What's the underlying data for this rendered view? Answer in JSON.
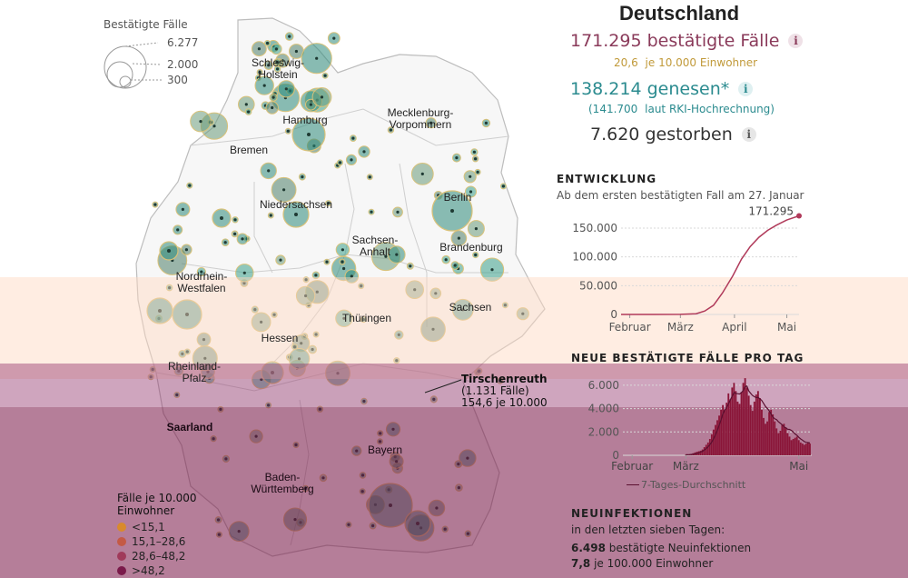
{
  "summary": {
    "title": "Deutschland",
    "confirmed": "171.295",
    "confirmed_label": "bestätigte Fälle",
    "per10k_value": "20,6",
    "per10k_label": "je 10.000 Einwohner",
    "recovered": "138.214",
    "recovered_label": "genesen*",
    "rki_estimate": "(141.700",
    "rki_label": "laut RKI-Hochrechnung)",
    "deaths": "7.620",
    "deaths_label": "gestorben",
    "info_glyph": "i"
  },
  "size_legend": {
    "title": "Bestätigte Fälle",
    "values": [
      "6.277",
      "2.000",
      "300"
    ]
  },
  "color_legend": {
    "title_line1": "Fälle je 10.000",
    "title_line2": "Einwohner",
    "items": [
      {
        "label": "<15,1",
        "color": "#d98a2b"
      },
      {
        "label": "15,1–28,6",
        "color": "#c45a45"
      },
      {
        "label": "28,6–48,2",
        "color": "#a03a5a"
      },
      {
        "label": ">48,2",
        "color": "#7a1a4a"
      }
    ]
  },
  "map_labels": {
    "schleswig": "Schleswig-",
    "holstein": "Holstein",
    "hamburg": "Hamburg",
    "mecklenburg": "Mecklenburg-",
    "vorpommern": "Vorpommern",
    "bremen": "Bremen",
    "berlin": "Berlin",
    "niedersachsen": "Niedersachsen",
    "sachsen_anhalt_1": "Sachsen-",
    "sachsen_anhalt_2": "Anhalt",
    "brandenburg": "Brandenburg",
    "nrw_1": "Nordrhein-",
    "nrw_2": "Westfalen",
    "sachsen": "Sachsen",
    "thueringen": "Thüringen",
    "hessen": "Hessen",
    "rlp_1": "Rheinland-",
    "rlp_2": "Pfalz",
    "saarland": "Saarland",
    "bayern": "Bayern",
    "bw_1": "Baden-",
    "bw_2": "Württemberg"
  },
  "callout": {
    "name": "Tirschenreuth",
    "cases": "(1.131 Fälle)",
    "rate": "154,6 je 10.000"
  },
  "trend": {
    "header": "ENTWICKLUNG",
    "subtitle": "Ab dem ersten bestätigten Fall am 27. Januar",
    "end_label": "171.295",
    "colors": {
      "line": "#b03a5a",
      "grid": "#d9d9d9"
    }
  },
  "daily": {
    "header": "NEUE BESTÄTIGTE FÄLLE PRO TAG",
    "legend_label": "7-Tages-Durchschnitt",
    "colors": {
      "bar": "#8a1538",
      "avg": "#5a1030"
    }
  },
  "new_infections": {
    "header": "NEUINFEKTIONEN",
    "sub": "in den letzten sieben Tagen:",
    "count": "6.498",
    "count_label": "bestätigte Neuinfektionen",
    "rate": "7,8",
    "rate_label": "je 100.000 Einwohner"
  },
  "chart_data": [
    {
      "type": "line",
      "title": "ENTWICKLUNG",
      "subtitle": "Ab dem ersten bestätigten Fall am 27. Januar",
      "x": [
        "2020-01-27",
        "2020-02-15",
        "2020-03-01",
        "2020-03-10",
        "2020-03-15",
        "2020-03-20",
        "2020-03-25",
        "2020-03-31",
        "2020-04-05",
        "2020-04-10",
        "2020-04-15",
        "2020-04-20",
        "2020-04-25",
        "2020-05-01",
        "2020-05-08"
      ],
      "series": [
        {
          "values": [
            1,
            16,
            130,
            1300,
            6000,
            16000,
            37000,
            67000,
            96000,
            118000,
            134000,
            146000,
            155000,
            164000,
            171295
          ]
        }
      ],
      "x_ticks": [
        "Februar",
        "März",
        "April",
        "Mai"
      ],
      "y_ticks": [
        "0",
        "50.000",
        "100.000",
        "150.000"
      ],
      "ylim": [
        0,
        180000
      ]
    },
    {
      "type": "bar",
      "title": "NEUE BESTÄTIGTE FÄLLE PRO TAG",
      "x_ticks": [
        "Februar",
        "März",
        "Mai"
      ],
      "y_ticks": [
        "0",
        "2.000",
        "4.000",
        "6.000"
      ],
      "ylim": [
        0,
        7000
      ],
      "categories": [
        "03-01",
        "03-02",
        "03-03",
        "03-04",
        "03-05",
        "03-06",
        "03-07",
        "03-08",
        "03-09",
        "03-10",
        "03-11",
        "03-12",
        "03-13",
        "03-14",
        "03-15",
        "03-16",
        "03-17",
        "03-18",
        "03-19",
        "03-20",
        "03-21",
        "03-22",
        "03-23",
        "03-24",
        "03-25",
        "03-26",
        "03-27",
        "03-28",
        "03-29",
        "03-30",
        "03-31",
        "04-01",
        "04-02",
        "04-03",
        "04-04",
        "04-05",
        "04-06",
        "04-07",
        "04-08",
        "04-09",
        "04-10",
        "04-11",
        "04-12",
        "04-13",
        "04-14",
        "04-15",
        "04-16",
        "04-17",
        "04-18",
        "04-19",
        "04-20",
        "04-21",
        "04-22",
        "04-23",
        "04-24",
        "04-25",
        "04-26",
        "04-27",
        "04-28",
        "04-29",
        "04-30",
        "05-01",
        "05-02",
        "05-03",
        "05-04",
        "05-05",
        "05-06",
        "05-07"
      ],
      "values": [
        50,
        60,
        80,
        120,
        180,
        250,
        300,
        350,
        400,
        500,
        700,
        900,
        1100,
        1400,
        1800,
        2200,
        2600,
        3000,
        3400,
        3900,
        4300,
        3900,
        4500,
        5300,
        4800,
        5800,
        6200,
        5500,
        4600,
        4400,
        5400,
        6200,
        6600,
        5800,
        5100,
        4300,
        3800,
        4600,
        5200,
        5500,
        4900,
        3900,
        3200,
        2700,
        2900,
        3700,
        3900,
        3500,
        2900,
        2300,
        1900,
        2100,
        2600,
        2700,
        2400,
        1900,
        1600,
        1300,
        1400,
        1500,
        1600,
        1300,
        1100,
        1000,
        900,
        1000,
        1100,
        1000
      ],
      "series": [
        {
          "name": "7-Tages-Durchschnitt",
          "values": [
            50,
            55,
            63,
            78,
            98,
            127,
            163,
            211,
            271,
            343,
            443,
            573,
            723,
            900,
            1129,
            1414,
            1757,
            2143,
            2571,
            3043,
            3557,
            3871,
            4100,
            4400,
            4743,
            5057,
            5386,
            5286,
            5271,
            5243,
            5371,
            5529,
            5871,
            5929,
            5500,
            5314,
            5129,
            5014,
            4943,
            4957,
            4829,
            4700,
            4443,
            4183,
            4014,
            3814,
            3529,
            3271,
            3129,
            3057,
            2871,
            2757,
            2614,
            2443,
            2337,
            2229,
            2214,
            2129,
            2000,
            1829,
            1714,
            1543,
            1400,
            1300,
            1171,
            1114,
            1086,
            1057
          ]
        }
      ]
    }
  ]
}
